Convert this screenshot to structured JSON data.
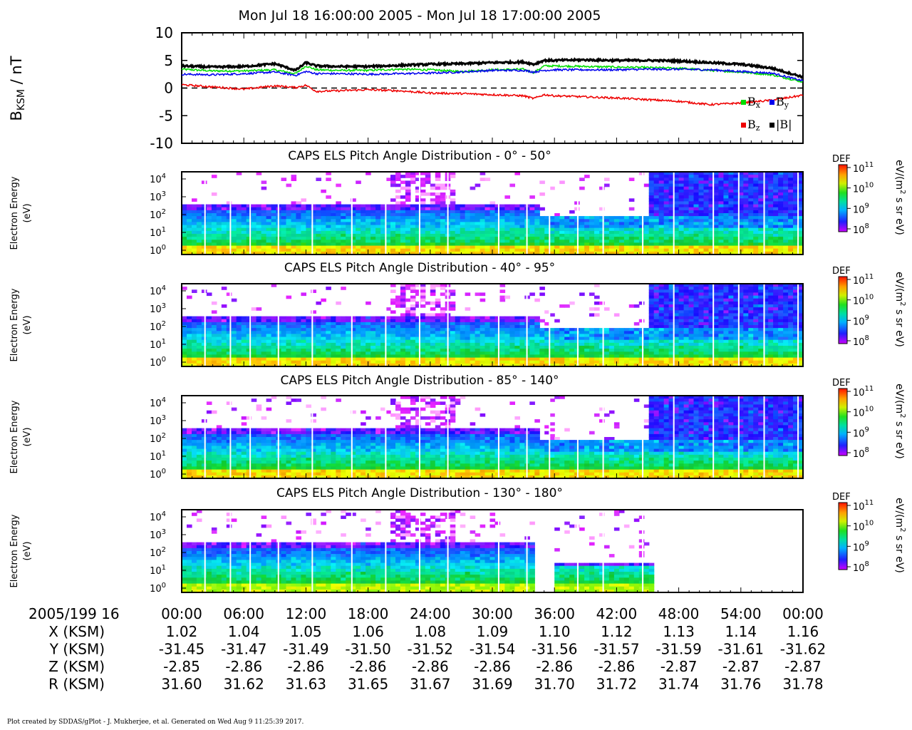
{
  "title": "Mon Jul 18 16:00:00 2005 - Mon Jul 18 17:00:00 2005",
  "footer": "Plot created by SDDAS/gPlot - J. Mukherjee, et al.  Generated on Wed Aug 9 11:25:39 2017.",
  "colors": {
    "bx": "#00dd00",
    "by": "#0000ee",
    "bz": "#ee0000",
    "bmag": "#000000"
  },
  "chart_data": [
    {
      "type": "line",
      "ylabel": "B",
      "ylabel_sub": "KSM",
      "ylabel_unit": " / nT",
      "ylim": [
        -10,
        10
      ],
      "yticks": [
        "10",
        "5",
        "0",
        "-5",
        "-10"
      ],
      "ytick_values": [
        10,
        5,
        0,
        -5,
        -10
      ],
      "zero_line": true,
      "xlim": [
        0,
        60
      ],
      "x": [
        0,
        3,
        6,
        9,
        11,
        12,
        13,
        15,
        18,
        21,
        24,
        27,
        30,
        33,
        34,
        35,
        36,
        39,
        42,
        45,
        48,
        51,
        54,
        57,
        60
      ],
      "series": [
        {
          "name": "B",
          "sub": "x",
          "color_key": "bx",
          "values": [
            3.4,
            3.1,
            3.1,
            3.3,
            2.6,
            4.0,
            3.3,
            3.2,
            3.2,
            3.4,
            3.3,
            3.0,
            3.3,
            3.4,
            2.8,
            4.0,
            4.0,
            3.9,
            3.8,
            3.7,
            3.6,
            3.2,
            2.9,
            2.4,
            1.1
          ]
        },
        {
          "name": "B",
          "sub": "y",
          "color_key": "by",
          "values": [
            2.5,
            2.4,
            2.6,
            2.9,
            2.3,
            3.0,
            2.6,
            2.6,
            2.5,
            2.6,
            2.7,
            2.9,
            3.2,
            3.2,
            2.9,
            3.2,
            3.3,
            3.3,
            3.3,
            3.4,
            3.4,
            3.3,
            3.0,
            2.7,
            1.3
          ]
        },
        {
          "name": "B",
          "sub": "z",
          "color_key": "bz",
          "values": [
            0.6,
            0.2,
            -0.2,
            0.4,
            0.1,
            0.5,
            -0.6,
            -0.5,
            -0.3,
            -0.5,
            -0.9,
            -1.0,
            -1.2,
            -1.4,
            -1.9,
            -1.2,
            -1.4,
            -1.6,
            -1.8,
            -2.1,
            -2.4,
            -3.0,
            -2.7,
            -2.2,
            -1.3
          ]
        },
        {
          "name": "|B|",
          "sub": "",
          "color_key": "bmag",
          "values": [
            4.0,
            3.8,
            3.9,
            4.4,
            3.2,
            4.6,
            4.0,
            3.9,
            3.9,
            4.1,
            4.3,
            4.4,
            4.6,
            4.7,
            4.3,
            5.0,
            5.0,
            5.1,
            5.0,
            5.0,
            4.9,
            4.6,
            4.3,
            3.6,
            2.0
          ]
        }
      ]
    },
    {
      "type": "heatmap",
      "title": "CAPS ELS Pitch Angle Distribution - 0° - 50°",
      "ylabel": "Electron Energy",
      "yunit": "(eV)",
      "yticks": [
        "10",
        "10",
        "10",
        "10",
        "10"
      ],
      "ytick_exp": [
        "4",
        "3",
        "2",
        "1",
        "0"
      ],
      "colorbar": {
        "label": "DEF",
        "ticks": [
          "10",
          "10",
          "10",
          "10"
        ],
        "exp": [
          "11",
          "10",
          "9",
          "8"
        ],
        "unit_a": "eV/(m",
        "unit_sup": "2",
        "unit_b": " s sr eV)"
      }
    },
    {
      "type": "heatmap",
      "title": "CAPS ELS Pitch Angle Distribution - 40° - 95°",
      "ylabel": "Electron Energy",
      "yunit": "(eV)",
      "yticks": [
        "10",
        "10",
        "10",
        "10",
        "10"
      ],
      "ytick_exp": [
        "4",
        "3",
        "2",
        "1",
        "0"
      ],
      "colorbar": {
        "label": "DEF",
        "ticks": [
          "10",
          "10",
          "10",
          "10"
        ],
        "exp": [
          "11",
          "10",
          "9",
          "8"
        ],
        "unit_a": "eV/(m",
        "unit_sup": "2",
        "unit_b": " s sr eV)"
      }
    },
    {
      "type": "heatmap",
      "title": "CAPS ELS Pitch Angle Distribution - 85° - 140°",
      "ylabel": "Electron Energy",
      "yunit": "(eV)",
      "yticks": [
        "10",
        "10",
        "10",
        "10",
        "10"
      ],
      "ytick_exp": [
        "4",
        "3",
        "2",
        "1",
        "0"
      ],
      "colorbar": {
        "label": "DEF",
        "ticks": [
          "10",
          "10",
          "10",
          "10"
        ],
        "exp": [
          "11",
          "10",
          "9",
          "8"
        ],
        "unit_a": "eV/(m",
        "unit_sup": "2",
        "unit_b": " s sr eV)"
      }
    },
    {
      "type": "heatmap",
      "title": "CAPS ELS Pitch Angle Distribution - 130° - 180°",
      "ylabel": "Electron Energy",
      "yunit": "(eV)",
      "yticks": [
        "10",
        "10",
        "10",
        "10",
        "10"
      ],
      "ytick_exp": [
        "4",
        "3",
        "2",
        "1",
        "0"
      ],
      "colorbar": {
        "label": "DEF",
        "ticks": [
          "10",
          "10",
          "10",
          "10"
        ],
        "exp": [
          "11",
          "10",
          "9",
          "8"
        ],
        "unit_a": "eV/(m",
        "unit_sup": "2",
        "unit_b": " s sr eV)"
      }
    }
  ],
  "ephemeris": {
    "header": "2005/199 16",
    "times": [
      "00:00",
      "06:00",
      "12:00",
      "18:00",
      "24:00",
      "30:00",
      "36:00",
      "42:00",
      "48:00",
      "54:00",
      "00:00"
    ],
    "rows": [
      {
        "label": "X (KSM)",
        "values": [
          "1.02",
          "1.04",
          "1.05",
          "1.06",
          "1.08",
          "1.09",
          "1.10",
          "1.12",
          "1.13",
          "1.14",
          "1.16"
        ]
      },
      {
        "label": "Y (KSM)",
        "values": [
          "-31.45",
          "-31.47",
          "-31.49",
          "-31.50",
          "-31.52",
          "-31.54",
          "-31.56",
          "-31.57",
          "-31.59",
          "-31.61",
          "-31.62"
        ]
      },
      {
        "label": "Z (KSM)",
        "values": [
          "-2.85",
          "-2.86",
          "-2.86",
          "-2.86",
          "-2.86",
          "-2.86",
          "-2.86",
          "-2.86",
          "-2.87",
          "-2.87",
          "-2.87"
        ]
      },
      {
        "label": "R (KSM)",
        "values": [
          "31.60",
          "31.62",
          "31.63",
          "31.65",
          "31.67",
          "31.69",
          "31.70",
          "31.72",
          "31.74",
          "31.76",
          "31.78"
        ]
      }
    ]
  }
}
